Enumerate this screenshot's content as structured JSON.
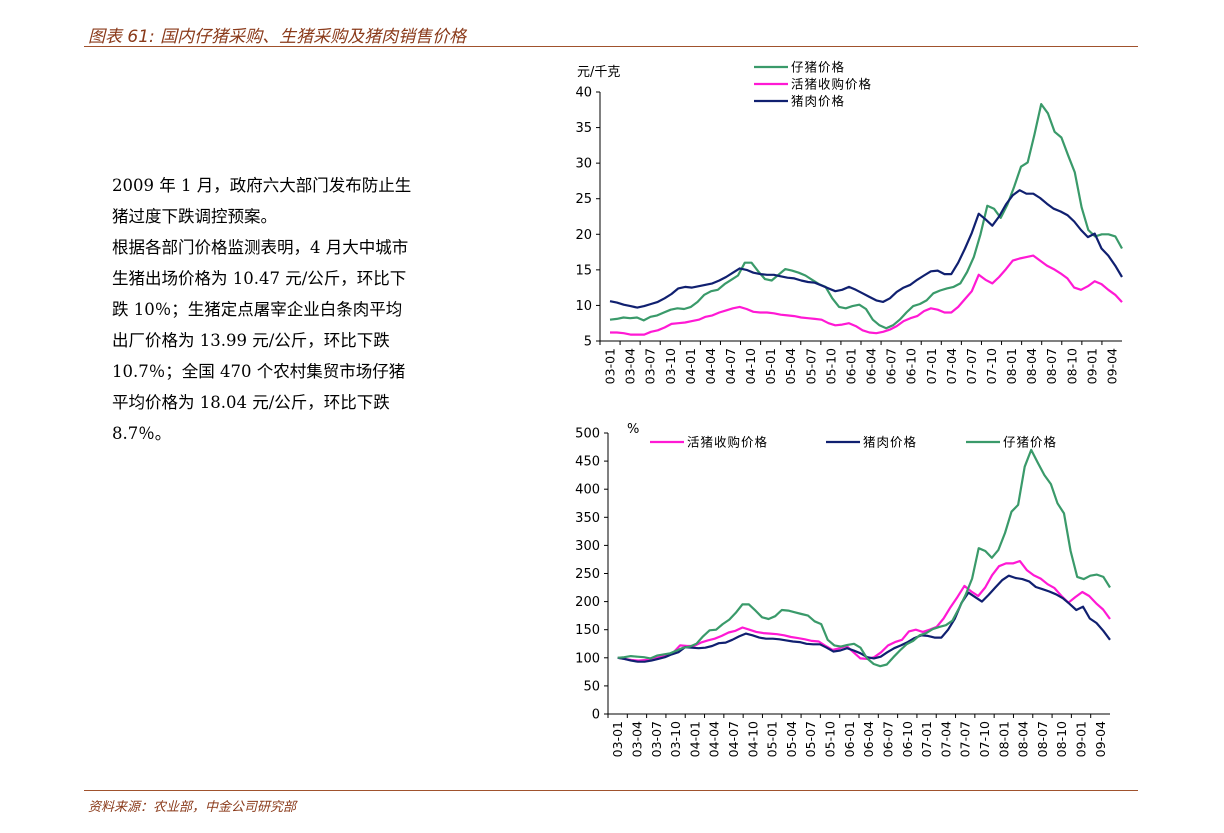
{
  "figure_title": "图表 61: 国内仔猪采购、生猪采购及猪肉销售价格",
  "source": "资料来源：农业部，中金公司研究部",
  "paragraphs": [
    "2009 年 1 月，政府六大部门发布防止生猪过度下跌调控预案。",
    "根据各部门价格监测表明，4 月大中城市生猪出场价格为 10.47 元/公斤，环比下跌 10％；生猪定点屠宰企业白条肉平均出厂价格为 13.99 元/公斤，环比下跌 10.7％；全国 470 个农村集贸市场仔猪平均价格为 18.04 元/公斤，环比下跌 8.7％。"
  ],
  "colors": {
    "piglet": "#3a9a6a",
    "live_hog": "#ff19d4",
    "pork": "#102070",
    "accent": "#a0522d"
  },
  "chart_data": [
    {
      "type": "line",
      "ylabel": "元/千克",
      "ylim": [
        5,
        40
      ],
      "yticks": [
        5,
        10,
        15,
        20,
        25,
        30,
        35,
        40
      ],
      "xticks": [
        "03-01",
        "03-04",
        "03-07",
        "03-10",
        "04-01",
        "04-04",
        "04-07",
        "04-10",
        "05-01",
        "05-04",
        "05-07",
        "05-10",
        "06-01",
        "06-04",
        "06-07",
        "06-10",
        "07-01",
        "07-04",
        "07-07",
        "07-10",
        "08-01",
        "08-04",
        "08-07",
        "08-10",
        "09-01",
        "09-04"
      ],
      "legend": [
        "仔猪价格",
        "活猪收购价格",
        "猪肉价格"
      ],
      "series": [
        {
          "name": "仔猪价格",
          "color": "#3a9a6a",
          "values": [
            8,
            8.1,
            8.3,
            8.2,
            8.3,
            7.9,
            8.4,
            8.6,
            9,
            9.4,
            9.6,
            9.5,
            9.8,
            10.5,
            11.5,
            12,
            12.2,
            13,
            13.6,
            14.2,
            16,
            16,
            14.8,
            13.7,
            13.5,
            14.3,
            15.1,
            14.9,
            14.6,
            14.2,
            13.6,
            13,
            12.6,
            11,
            9.8,
            9.6,
            9.9,
            10.1,
            9.5,
            8,
            7.2,
            6.8,
            7.2,
            8,
            9,
            9.9,
            10.2,
            10.7,
            11.7,
            12.1,
            12.4,
            12.6,
            13.1,
            14.7,
            16.8,
            20,
            24,
            23.6,
            22.3,
            24.2,
            26.7,
            29.5,
            30.1,
            34,
            38.3,
            37,
            34.4,
            33.6,
            31.1,
            28.7,
            23.8,
            20.6,
            19.7,
            20,
            20,
            19.7,
            18
          ]
        },
        {
          "name": "活猪收购价格",
          "color": "#ff19d4",
          "values": [
            6.2,
            6.2,
            6.1,
            5.9,
            5.9,
            5.9,
            6.3,
            6.5,
            6.9,
            7.4,
            7.5,
            7.6,
            7.8,
            8,
            8.4,
            8.6,
            9,
            9.3,
            9.6,
            9.8,
            9.5,
            9.1,
            9,
            9,
            8.9,
            8.7,
            8.6,
            8.5,
            8.3,
            8.2,
            8.1,
            8,
            7.5,
            7.2,
            7.3,
            7.5,
            7.1,
            6.5,
            6.2,
            6.1,
            6.3,
            6.6,
            7.1,
            7.8,
            8.2,
            8.5,
            9.2,
            9.6,
            9.4,
            9,
            9,
            9.8,
            10.9,
            12,
            14.3,
            13.6,
            13.1,
            14,
            15.1,
            16.3,
            16.6,
            16.8,
            17,
            16.3,
            15.6,
            15.1,
            14.5,
            13.8,
            12.5,
            12.2,
            12.7,
            13.4,
            13,
            12.2,
            11.5,
            10.47
          ]
        },
        {
          "name": "猪肉价格",
          "color": "#102070",
          "values": [
            10.6,
            10.4,
            10.1,
            9.9,
            9.7,
            9.9,
            10.2,
            10.5,
            11,
            11.6,
            12.4,
            12.6,
            12.5,
            12.7,
            12.9,
            13.1,
            13.5,
            14,
            14.6,
            15.2,
            15,
            14.6,
            14.4,
            14.3,
            14.3,
            14.1,
            13.9,
            13.8,
            13.5,
            13.3,
            13.2,
            12.8,
            12.4,
            12,
            12.2,
            12.6,
            12.2,
            11.7,
            11.2,
            10.7,
            10.5,
            11,
            11.9,
            12.5,
            12.9,
            13.6,
            14.2,
            14.8,
            14.9,
            14.4,
            14.4,
            16,
            18,
            20.2,
            22.9,
            22.1,
            21.2,
            22.5,
            24.2,
            25.5,
            26.2,
            25.7,
            25.7,
            25.1,
            24.3,
            23.6,
            23.2,
            22.7,
            21.8,
            20.6,
            19.6,
            20.1,
            18,
            17,
            15.6,
            13.99
          ]
        }
      ]
    },
    {
      "type": "line",
      "ylabel": "%",
      "ylim": [
        0,
        500
      ],
      "yticks": [
        0,
        50,
        100,
        150,
        200,
        250,
        300,
        350,
        400,
        450,
        500
      ],
      "xticks": [
        "03-01",
        "03-04",
        "03-07",
        "03-10",
        "04-01",
        "04-04",
        "04-07",
        "04-10",
        "05-01",
        "05-04",
        "05-07",
        "05-10",
        "06-01",
        "06-04",
        "06-07",
        "06-10",
        "07-01",
        "07-04",
        "07-07",
        "07-10",
        "08-01",
        "08-04",
        "08-07",
        "08-10",
        "09-01",
        "09-04"
      ],
      "legend": [
        "活猪收购价格",
        "猪肉价格",
        "仔猪价格"
      ],
      "series": [
        {
          "name": "活猪收购价格",
          "color": "#ff19d4",
          "values": [
            100,
            98,
            96,
            95,
            96,
            98,
            101,
            104,
            109,
            122,
            121,
            121,
            127,
            131,
            134,
            139,
            145,
            148,
            154,
            150,
            146,
            144,
            143,
            142,
            140,
            137,
            135,
            133,
            130,
            129,
            121,
            114,
            117,
            121,
            110,
            99,
            98,
            101,
            110,
            122,
            128,
            132,
            147,
            150,
            146,
            150,
            155,
            170,
            190,
            208,
            228,
            218,
            210,
            225,
            247,
            263,
            268,
            268,
            272,
            256,
            247,
            241,
            231,
            224,
            210,
            198,
            208,
            217,
            210,
            197,
            186,
            169
          ]
        },
        {
          "name": "猪肉价格",
          "color": "#102070",
          "values": [
            100,
            98,
            95,
            93,
            93,
            95,
            98,
            101,
            106,
            110,
            119,
            118,
            117,
            118,
            121,
            126,
            127,
            132,
            138,
            143,
            140,
            136,
            134,
            134,
            133,
            131,
            129,
            128,
            125,
            124,
            124,
            118,
            111,
            113,
            117,
            113,
            108,
            101,
            99,
            102,
            110,
            117,
            122,
            128,
            135,
            140,
            139,
            136,
            136,
            150,
            170,
            198,
            216,
            208,
            200,
            212,
            225,
            238,
            246,
            242,
            240,
            236,
            226,
            222,
            218,
            213,
            206,
            196,
            185,
            191,
            170,
            162,
            148,
            132
          ]
        },
        {
          "name": "仔猪价格",
          "color": "#3a9a6a",
          "values": [
            100,
            101,
            103,
            102,
            101,
            99,
            104,
            106,
            108,
            113,
            118,
            120,
            125,
            138,
            149,
            150,
            160,
            168,
            180,
            195,
            195,
            184,
            172,
            169,
            174,
            185,
            184,
            181,
            178,
            175,
            165,
            160,
            132,
            122,
            120,
            123,
            125,
            118,
            99,
            89,
            85,
            88,
            101,
            113,
            124,
            130,
            140,
            144,
            151,
            155,
            158,
            166,
            188,
            212,
            241,
            295,
            290,
            278,
            292,
            322,
            360,
            372,
            440,
            470,
            447,
            425,
            409,
            375,
            357,
            290,
            244,
            240,
            246,
            248,
            244,
            225
          ]
        }
      ]
    }
  ]
}
